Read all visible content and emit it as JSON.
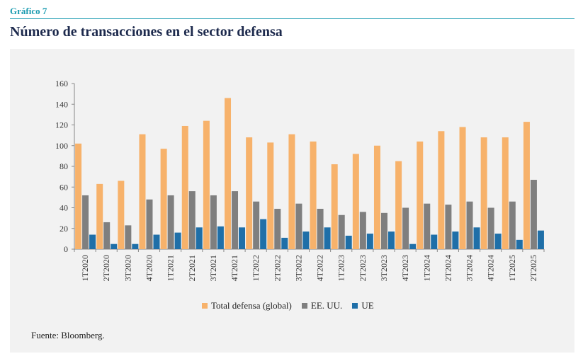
{
  "header": {
    "figure_label": "Gráfico 7",
    "title": "Número de transacciones en el sector defensa"
  },
  "source": "Fuente: Bloomberg.",
  "colors": {
    "accent": "#1a9bb0",
    "title": "#1d2a4d",
    "panel_bg": "#f2f2f2"
  },
  "chart_data": {
    "type": "bar",
    "categories": [
      "1T2020",
      "2T2020",
      "3T2020",
      "4T2020",
      "1T2021",
      "2T2021",
      "3T2021",
      "4T2021",
      "1T2022",
      "2T2022",
      "3T2022",
      "4T2022",
      "1T2023",
      "2T2023",
      "3T2023",
      "4T2023",
      "1T2024",
      "2T2024",
      "3T2024",
      "4T2024",
      "1T2025",
      "2T2025"
    ],
    "series": [
      {
        "name": "Total defensa (global)",
        "color": "#f7b26b",
        "values": [
          102,
          63,
          66,
          111,
          97,
          119,
          124,
          146,
          108,
          103,
          111,
          104,
          82,
          92,
          100,
          85,
          104,
          114,
          118,
          108,
          108,
          123
        ]
      },
      {
        "name": "EE. UU.",
        "color": "#7f7f7f",
        "values": [
          52,
          26,
          23,
          48,
          52,
          56,
          52,
          56,
          46,
          39,
          44,
          39,
          33,
          36,
          35,
          40,
          44,
          43,
          46,
          40,
          46,
          67
        ]
      },
      {
        "name": "UE",
        "color": "#1f6fa8",
        "values": [
          14,
          5,
          5,
          14,
          16,
          21,
          22,
          21,
          29,
          11,
          17,
          21,
          13,
          15,
          17,
          5,
          14,
          17,
          21,
          15,
          9,
          18
        ]
      }
    ],
    "ylim": [
      0,
      160
    ],
    "yticks": [
      0,
      20,
      40,
      60,
      80,
      100,
      120,
      140,
      160
    ],
    "grid": false,
    "legend": "bottom"
  }
}
